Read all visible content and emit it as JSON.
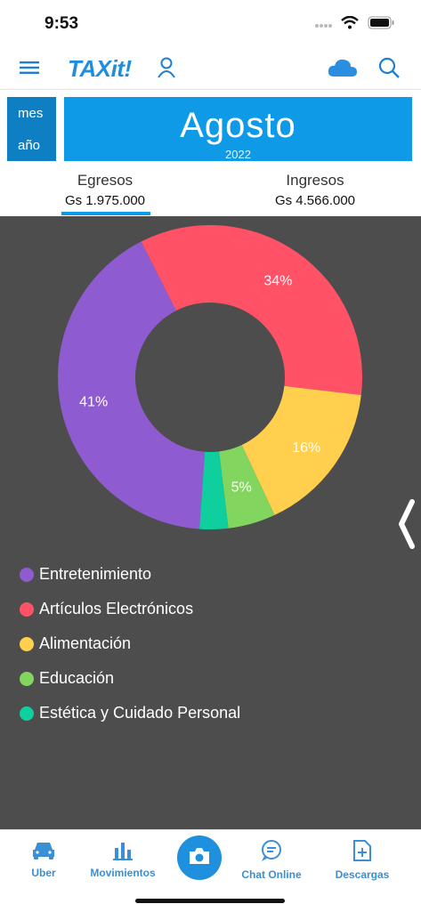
{
  "status": {
    "time": "9:53"
  },
  "header": {
    "logo": "TAXit!"
  },
  "period": {
    "mes_label": "mes",
    "anio_label": "año",
    "month": "Agosto",
    "year": "2022"
  },
  "tabs": [
    {
      "label": "Egresos",
      "amount": "Gs 1.975.000",
      "selected": true
    },
    {
      "label": "Ingresos",
      "amount": "Gs 4.566.000",
      "selected": false
    }
  ],
  "chart_data": {
    "type": "pie",
    "donut": true,
    "labels": [
      "Entretenimiento",
      "Artículos Electrónicos",
      "Alimentación",
      "Educación",
      "Estética y Cuidado Personal"
    ],
    "values": [
      41,
      34,
      16,
      5,
      3
    ],
    "shown_labels": [
      "41%",
      "34%",
      "16%",
      "5%",
      ""
    ],
    "colors": [
      "#8f5bd1",
      "#ff5266",
      "#ffcf4d",
      "#82d65f",
      "#10cf9e"
    ],
    "legend_placement": "bottom-left"
  },
  "bottom_nav": [
    {
      "label": "Uber",
      "icon": "car-icon"
    },
    {
      "label": "Movimientos",
      "icon": "bar-chart-icon"
    },
    {
      "label": "",
      "icon": "camera-icon"
    },
    {
      "label": "Chat Online",
      "icon": "chat-icon"
    },
    {
      "label": "Descargas",
      "icon": "download-doc-icon"
    }
  ]
}
